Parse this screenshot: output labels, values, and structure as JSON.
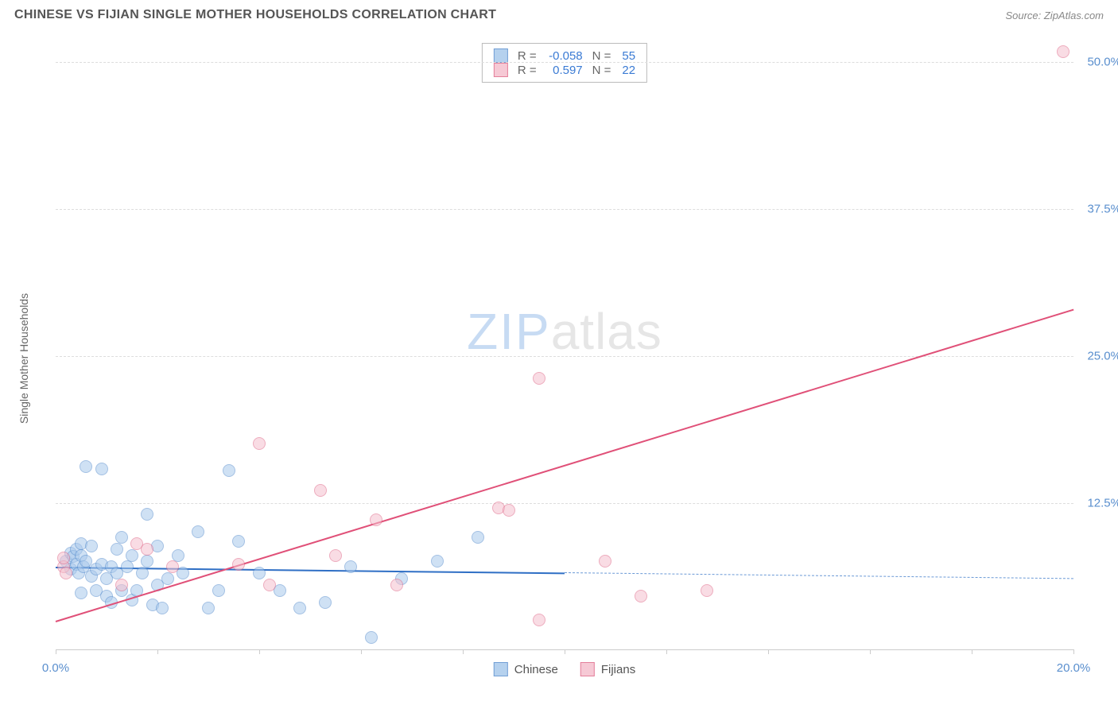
{
  "header": {
    "title": "CHINESE VS FIJIAN SINGLE MOTHER HOUSEHOLDS CORRELATION CHART",
    "source": "Source: ZipAtlas.com"
  },
  "watermark": {
    "zip": "ZIP",
    "atlas": "atlas"
  },
  "chart": {
    "type": "scatter",
    "y_axis_label": "Single Mother Households",
    "xlim": [
      0,
      20
    ],
    "ylim": [
      0,
      52
    ],
    "x_ticks": [
      0,
      2,
      4,
      6,
      8,
      10,
      12,
      14,
      16,
      18,
      20
    ],
    "x_tick_labels": {
      "0": "0.0%",
      "20": "20.0%"
    },
    "y_gridlines": [
      12.5,
      25.0,
      37.5,
      50.0
    ],
    "y_tick_labels": [
      "12.5%",
      "25.0%",
      "37.5%",
      "50.0%"
    ],
    "background_color": "#ffffff",
    "grid_color": "#dddddd",
    "axis_color": "#cccccc",
    "label_color": "#5a8fce",
    "series": [
      {
        "name": "Chinese",
        "fill": "#a9c9ec",
        "stroke": "#5a8fce",
        "fill_opacity": 0.55,
        "marker_radius": 8,
        "correlation_r": "-0.058",
        "n": "55",
        "trend": {
          "x1": 0,
          "y1": 7.1,
          "x2": 10,
          "y2": 6.6,
          "color": "#2f6fc5",
          "width": 2,
          "dash": false
        },
        "trend_ext": {
          "x1": 10,
          "y1": 6.6,
          "x2": 20,
          "y2": 6.1,
          "color": "#6a99d6",
          "width": 1.5,
          "dash": true
        },
        "points": [
          [
            0.2,
            7.5
          ],
          [
            0.3,
            8.2
          ],
          [
            0.3,
            6.8
          ],
          [
            0.35,
            7.9
          ],
          [
            0.4,
            7.2
          ],
          [
            0.4,
            8.5
          ],
          [
            0.45,
            6.5
          ],
          [
            0.5,
            8.0
          ],
          [
            0.5,
            9.0
          ],
          [
            0.55,
            7.0
          ],
          [
            0.6,
            15.5
          ],
          [
            0.6,
            7.5
          ],
          [
            0.7,
            6.2
          ],
          [
            0.7,
            8.8
          ],
          [
            0.8,
            6.8
          ],
          [
            0.8,
            5.0
          ],
          [
            0.9,
            7.2
          ],
          [
            0.9,
            15.3
          ],
          [
            1.0,
            4.5
          ],
          [
            1.0,
            6.0
          ],
          [
            1.1,
            7.0
          ],
          [
            1.1,
            4.0
          ],
          [
            1.2,
            6.5
          ],
          [
            1.2,
            8.5
          ],
          [
            1.3,
            5.0
          ],
          [
            1.3,
            9.5
          ],
          [
            1.4,
            7.0
          ],
          [
            1.5,
            4.2
          ],
          [
            1.5,
            8.0
          ],
          [
            1.6,
            5.0
          ],
          [
            1.7,
            6.5
          ],
          [
            1.8,
            7.5
          ],
          [
            1.8,
            11.5
          ],
          [
            1.9,
            3.8
          ],
          [
            2.0,
            5.5
          ],
          [
            2.0,
            8.8
          ],
          [
            2.1,
            3.5
          ],
          [
            2.2,
            6.0
          ],
          [
            2.4,
            8.0
          ],
          [
            2.5,
            6.5
          ],
          [
            2.8,
            10.0
          ],
          [
            3.0,
            3.5
          ],
          [
            3.2,
            5.0
          ],
          [
            3.4,
            15.2
          ],
          [
            3.6,
            9.2
          ],
          [
            4.0,
            6.5
          ],
          [
            4.4,
            5.0
          ],
          [
            4.8,
            3.5
          ],
          [
            5.3,
            4.0
          ],
          [
            5.8,
            7.0
          ],
          [
            6.2,
            1.0
          ],
          [
            6.8,
            6.0
          ],
          [
            7.5,
            7.5
          ],
          [
            8.3,
            9.5
          ],
          [
            0.5,
            4.8
          ]
        ]
      },
      {
        "name": "Fijians",
        "fill": "#f5c0ce",
        "stroke": "#e06a8a",
        "fill_opacity": 0.55,
        "marker_radius": 8,
        "correlation_r": "0.597",
        "n": "22",
        "trend": {
          "x1": 0,
          "y1": 2.5,
          "x2": 20,
          "y2": 29.0,
          "color": "#e05078",
          "width": 2,
          "dash": false
        },
        "points": [
          [
            0.15,
            7.0
          ],
          [
            0.15,
            7.8
          ],
          [
            0.2,
            6.5
          ],
          [
            1.3,
            5.5
          ],
          [
            1.6,
            9.0
          ],
          [
            1.8,
            8.5
          ],
          [
            2.3,
            7.0
          ],
          [
            3.6,
            7.2
          ],
          [
            4.0,
            17.5
          ],
          [
            4.2,
            5.5
          ],
          [
            5.2,
            13.5
          ],
          [
            5.5,
            8.0
          ],
          [
            6.3,
            11.0
          ],
          [
            6.7,
            5.5
          ],
          [
            8.7,
            12.0
          ],
          [
            8.9,
            11.8
          ],
          [
            9.5,
            23.0
          ],
          [
            9.5,
            2.5
          ],
          [
            10.8,
            7.5
          ],
          [
            11.5,
            4.5
          ],
          [
            12.8,
            5.0
          ],
          [
            19.8,
            50.8
          ]
        ]
      }
    ],
    "stats_box_title_r": "R =",
    "stats_box_title_n": "N =",
    "legend_series1": "Chinese",
    "legend_series2": "Fijians"
  }
}
